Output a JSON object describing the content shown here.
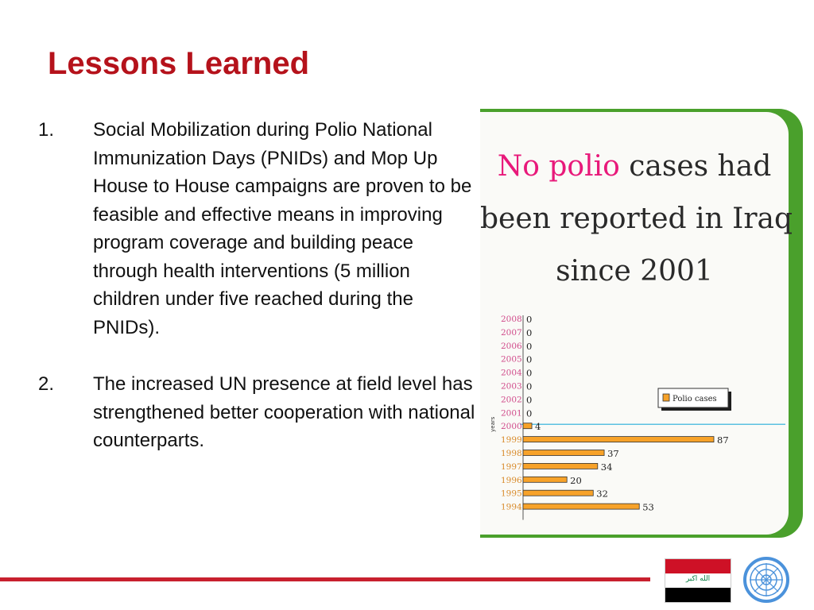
{
  "slide": {
    "title": "Lessons Learned",
    "items": [
      {
        "number": "1.",
        "text": "Social Mobilization during Polio National Immunization Days (PNIDs) and Mop Up House to House campaigns are proven to be feasible and effective means in improving program coverage and building peace through health interventions (5 million children under five reached during the PNIDs)."
      },
      {
        "number": "2.",
        "text": "The increased UN presence at field level has strengthened better cooperation  with national counterparts."
      }
    ]
  },
  "chart_data": {
    "type": "bar",
    "orientation": "horizontal",
    "title_parts": {
      "highlight": "No polio",
      "line1_rest": " cases had",
      "line2": "been reported in Iraq",
      "line3": "since 2001"
    },
    "ylabel": "years",
    "legend": "Polio cases",
    "legend_position": "right",
    "categories": [
      "2008",
      "2007",
      "2006",
      "2005",
      "2004",
      "2003",
      "2002",
      "2001",
      "2000",
      "1999",
      "1998",
      "1997",
      "1996",
      "1995",
      "1994"
    ],
    "values": [
      0,
      0,
      0,
      0,
      0,
      0,
      0,
      0,
      4,
      87,
      37,
      34,
      20,
      32,
      53
    ],
    "xlim": [
      0,
      90
    ],
    "colors": {
      "bar": "#f7a229",
      "year_recent": "#d04a8a",
      "year_old": "#d88a2a",
      "divider": "#5bc0e0"
    }
  },
  "flag": {
    "script": "الله اكبر"
  }
}
